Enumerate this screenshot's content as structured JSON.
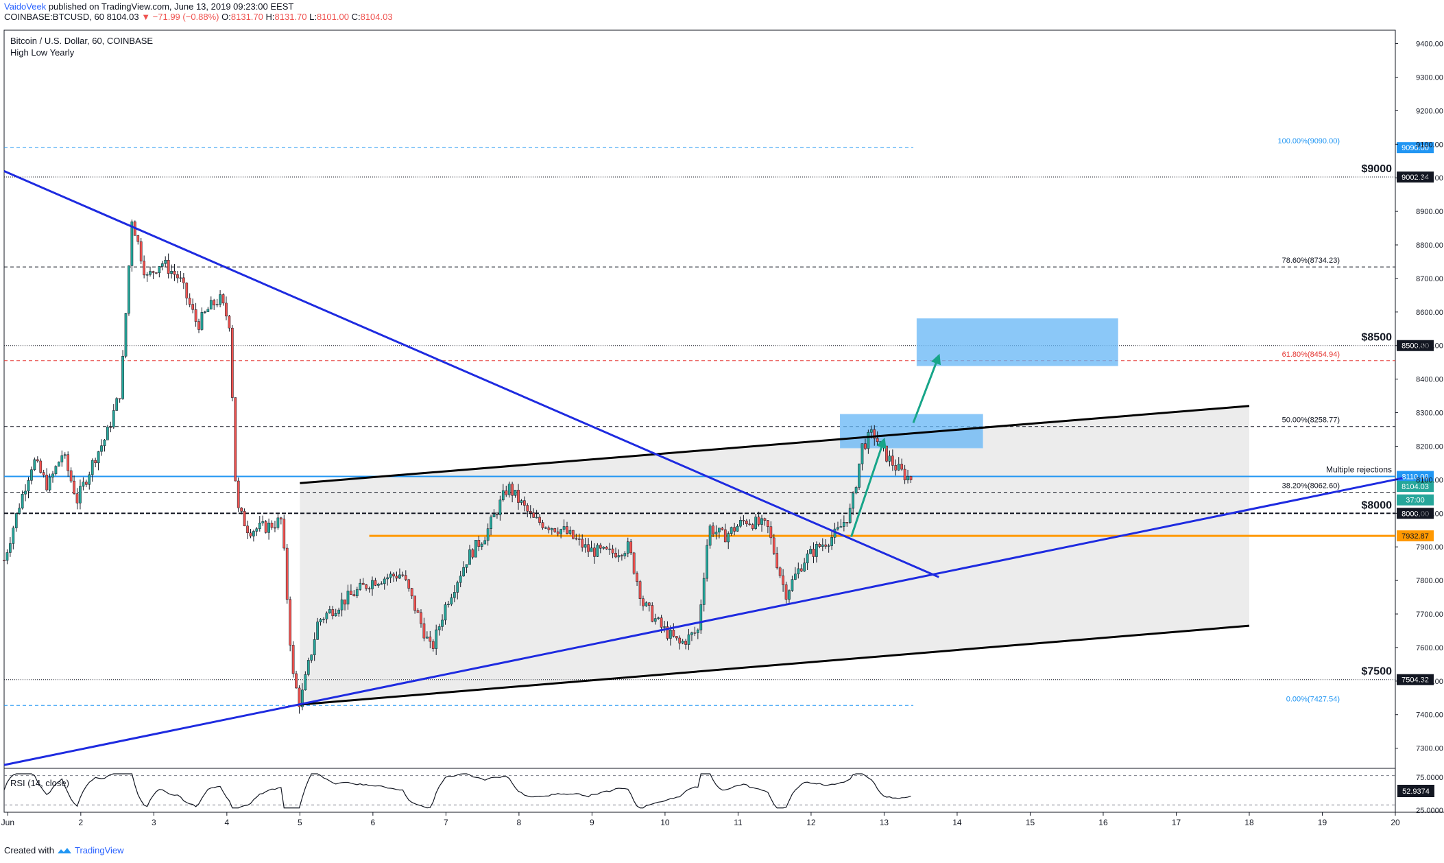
{
  "header": {
    "author": "VaidoVeek",
    "published": "published on TradingView.com, June 13, 2019 09:23:00 EEST",
    "symbol_line": "COINBASE:BTCUSD, 60",
    "last": "8104.03",
    "change": "▼ −71.99 (−0.88%)",
    "o_label": "O:",
    "o": "8131.70",
    "h_label": "H:",
    "h": "8131.70",
    "l_label": "L:",
    "l": "8101.00",
    "c_label": "C:",
    "c": "8104.03"
  },
  "footer": {
    "created_with": "Created with",
    "brand": "TradingView"
  },
  "chart_data": {
    "type": "candlestick",
    "title": "Bitcoin / U.S. Dollar, 60, COINBASE",
    "subtitle": "High Low Yearly",
    "x_ticks": [
      "Jun",
      "2",
      "3",
      "4",
      "5",
      "6",
      "7",
      "8",
      "9",
      "10",
      "11",
      "12",
      "13",
      "14",
      "15",
      "16",
      "17",
      "18",
      "19",
      "20"
    ],
    "y_ticks": [
      7300,
      7400,
      7500,
      7600,
      7700,
      7800,
      7900,
      8000,
      8100,
      8200,
      8300,
      8400,
      8500,
      8600,
      8700,
      8800,
      8900,
      9000,
      9100,
      9200,
      9300,
      9400
    ],
    "y_tick_labels": [
      "7300.00",
      "7400.00",
      "7500.00",
      "7600.00",
      "7700.00",
      "7800.00",
      "7900.00",
      "8000.00",
      "8100.00",
      "8200.00",
      "8300.00",
      "8400.00",
      "8500.00",
      "8600.00",
      "8700.00",
      "8800.00",
      "8900.00",
      "9000.00",
      "9100.00",
      "9200.00",
      "9300.00",
      "9400.00"
    ],
    "ylim": [
      7240,
      9440
    ],
    "xlim_days": [
      0.95,
      20.0
    ],
    "price_path": [
      [
        0.95,
        7860
      ],
      [
        1.15,
        8020
      ],
      [
        1.35,
        8160
      ],
      [
        1.55,
        8080
      ],
      [
        1.75,
        8180
      ],
      [
        1.95,
        8040
      ],
      [
        2.2,
        8170
      ],
      [
        2.35,
        8230
      ],
      [
        2.55,
        8370
      ],
      [
        2.7,
        8880
      ],
      [
        2.9,
        8700
      ],
      [
        3.1,
        8750
      ],
      [
        3.35,
        8700
      ],
      [
        3.6,
        8560
      ],
      [
        3.75,
        8610
      ],
      [
        3.9,
        8640
      ],
      [
        4.05,
        8560
      ],
      [
        4.1,
        8150
      ],
      [
        4.15,
        8010
      ],
      [
        4.3,
        7950
      ],
      [
        4.55,
        7960
      ],
      [
        4.75,
        7980
      ],
      [
        4.9,
        7520
      ],
      [
        5.0,
        7430
      ],
      [
        5.25,
        7680
      ],
      [
        5.6,
        7740
      ],
      [
        6.0,
        7800
      ],
      [
        6.4,
        7820
      ],
      [
        6.8,
        7590
      ],
      [
        7.0,
        7730
      ],
      [
        7.3,
        7870
      ],
      [
        7.55,
        7940
      ],
      [
        7.85,
        8080
      ],
      [
        8.2,
        7980
      ],
      [
        8.6,
        7950
      ],
      [
        8.95,
        7890
      ],
      [
        9.25,
        7880
      ],
      [
        9.5,
        7900
      ],
      [
        9.7,
        7730
      ],
      [
        9.95,
        7660
      ],
      [
        10.2,
        7610
      ],
      [
        10.45,
        7650
      ],
      [
        10.6,
        7960
      ],
      [
        10.8,
        7930
      ],
      [
        11.1,
        7980
      ],
      [
        11.4,
        7960
      ],
      [
        11.65,
        7760
      ],
      [
        11.9,
        7860
      ],
      [
        12.1,
        7900
      ],
      [
        12.35,
        7940
      ],
      [
        12.55,
        8010
      ],
      [
        12.7,
        8200
      ],
      [
        12.85,
        8240
      ],
      [
        13.0,
        8180
      ],
      [
        13.15,
        8140
      ],
      [
        13.3,
        8110
      ],
      [
        13.38,
        8104
      ]
    ],
    "rsi": {
      "label": "RSI (14, close)",
      "last": "52.9374",
      "levels": [
        "75.0000",
        "25.0000"
      ],
      "ylim": [
        15,
        85
      ]
    },
    "horizontal_levels": [
      {
        "label": "100.00%(9090.00)",
        "price": 9090.0,
        "style": "fib",
        "color": "#2196f3"
      },
      {
        "label": "78.60%(8734.23)",
        "price": 8734.23,
        "style": "fib",
        "color": "#131722"
      },
      {
        "label": "61.80%(8454.94)",
        "price": 8454.94,
        "style": "fib",
        "color": "#e53935"
      },
      {
        "label": "50.00%(8258.77)",
        "price": 8258.77,
        "style": "fib",
        "color": "#131722"
      },
      {
        "label": "38.20%(8062.60)",
        "price": 8062.6,
        "style": "fib",
        "color": "#131722"
      },
      {
        "label": "0.00%(7427.54)",
        "price": 7427.54,
        "style": "fib",
        "color": "#2196f3"
      }
    ],
    "round_levels": [
      {
        "label": "$9000",
        "price": 9002.34,
        "axis_label": "9002.34"
      },
      {
        "label": "$8500",
        "price": 8500.0,
        "axis_label": "8500.00"
      },
      {
        "label": "$8000",
        "price": 8000.0,
        "axis_label": "8000.00"
      },
      {
        "label": "$7500",
        "price": 7504.32,
        "axis_label": "7504.32"
      }
    ],
    "resistance": {
      "label": "Multiple rejections",
      "price": 8110.0,
      "axis_label": "8110.00",
      "color": "#2196f3"
    },
    "support": {
      "price": 7932.87,
      "axis_label": "7932.87",
      "color": "#ff9800",
      "from_day": 5.95
    },
    "price_tags": [
      {
        "text": "9090.00",
        "price": 9090.0,
        "bg": "#2196f3",
        "fg": "#ffffff"
      },
      {
        "text": "8104.03",
        "price": 8080.0,
        "bg": "#26a69a",
        "fg": "#ffffff"
      },
      {
        "text": "37:00",
        "price": 8040.0,
        "bg": "#26a69a",
        "fg": "#ffffff"
      }
    ],
    "trendlines": [
      {
        "points": [
          [
            0.95,
            9020
          ],
          [
            13.75,
            7810
          ]
        ],
        "color": "#1e2be0"
      },
      {
        "points": [
          [
            0.95,
            7250
          ],
          [
            20.1,
            8105
          ]
        ],
        "color": "#1e2be0"
      }
    ],
    "channel": {
      "upper": [
        [
          5.0,
          8090
        ],
        [
          18.0,
          8320
        ]
      ],
      "lower": [
        [
          5.0,
          7430
        ],
        [
          18.0,
          7665
        ]
      ],
      "fill": "#d5d5d5"
    },
    "target_zones": [
      {
        "x": [
          12.4,
          14.35
        ],
        "y": [
          8195,
          8295
        ]
      },
      {
        "x": [
          13.45,
          16.2
        ],
        "y": [
          8440,
          8580
        ]
      }
    ],
    "arrows": [
      {
        "from": [
          12.55,
          7930
        ],
        "to": [
          13.0,
          8220
        ]
      },
      {
        "from": [
          13.4,
          8270
        ],
        "to": [
          13.75,
          8470
        ]
      }
    ]
  }
}
